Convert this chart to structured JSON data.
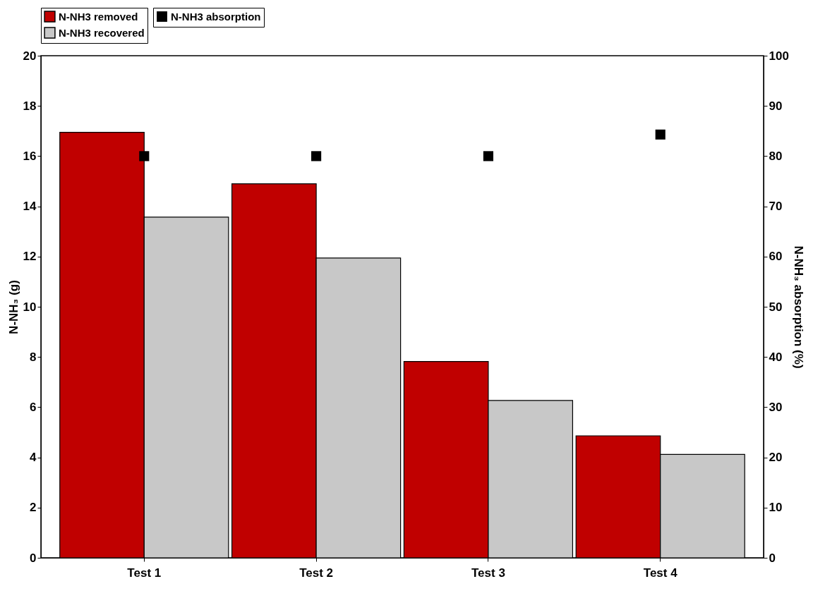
{
  "chart_data": {
    "type": "bar",
    "categories": [
      "Test 1",
      "Test 2",
      "Test 3",
      "Test 4"
    ],
    "ylabel": "N-NH₃ (g)",
    "y2label": "N-NH₃ absorption (%)",
    "ylim": [
      0,
      20
    ],
    "yticks": [
      0,
      2,
      4,
      6,
      8,
      10,
      12,
      14,
      16,
      18,
      20
    ],
    "y2lim": [
      0,
      100
    ],
    "y2ticks": [
      0,
      10,
      20,
      30,
      40,
      50,
      60,
      70,
      80,
      90,
      100
    ],
    "grid": false,
    "legend": "top",
    "series": [
      {
        "name": "N-NH3 removed",
        "color": "#c00000",
        "values": [
          16.95,
          14.9,
          7.82,
          4.86
        ]
      },
      {
        "name": "N-NH3 recovered",
        "color": "#c8c8c8",
        "values": [
          13.57,
          11.94,
          6.27,
          4.12
        ]
      },
      {
        "name": "N-NH3 absorption",
        "type": "scatter",
        "axis": "y2",
        "marker": "square",
        "color": "#000000",
        "values": [
          80,
          80,
          80,
          84.3
        ]
      }
    ]
  }
}
